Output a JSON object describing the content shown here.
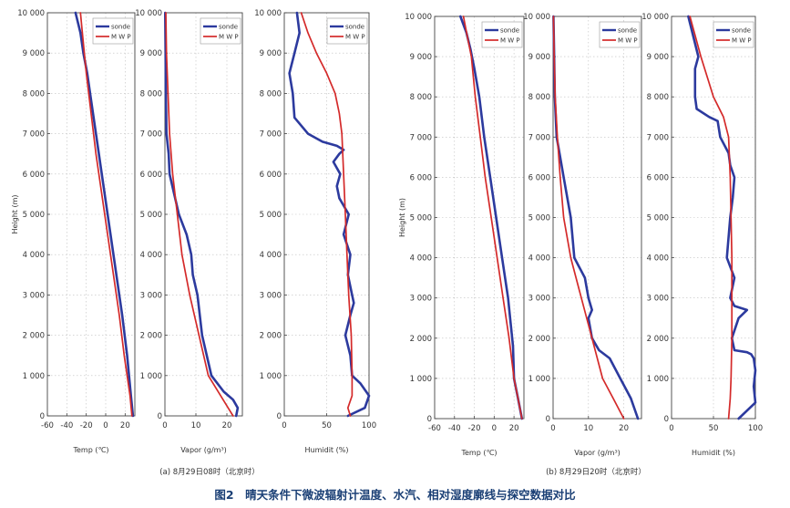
{
  "caption": "图2　晴天条件下微波辐射计温度、水汽、相对湿度廓线与探空数据对比",
  "colors": {
    "sonde": "#2c3a9e",
    "mwp": "#d42a2a",
    "axis": "#444444",
    "text": "#333333"
  },
  "legend": {
    "sonde": "sonde",
    "mwp": "M W P"
  },
  "chart_data": [
    {
      "id": "a-temp",
      "type": "line",
      "xlabel": "Temp (℃)",
      "ylabel": "Height (m)",
      "xlim": [
        -60,
        30
      ],
      "ylim": [
        0,
        10000
      ],
      "xticks": [
        -60,
        -40,
        -20,
        0,
        20
      ],
      "yticks": [
        0,
        1000,
        2000,
        3000,
        4000,
        5000,
        6000,
        7000,
        8000,
        9000,
        10000
      ],
      "ytick_labels": [
        "0",
        "1 000",
        "2 000",
        "3 000",
        "4 000",
        "5 000",
        "6 000",
        "7 000",
        "8 000",
        "9 000",
        "10 000"
      ],
      "grid": true,
      "legend_position": "top-right",
      "series": [
        {
          "name": "sonde",
          "x": [
            28,
            26,
            24,
            22,
            17,
            11,
            5,
            -1,
            -7,
            -13,
            -19,
            -23,
            -26,
            -31
          ],
          "y": [
            0,
            500,
            1000,
            1500,
            2500,
            3500,
            4500,
            5500,
            6500,
            7500,
            8500,
            9000,
            9500,
            10000
          ]
        },
        {
          "name": "MWP",
          "x": [
            27,
            25,
            22,
            19,
            14,
            8,
            2,
            -4,
            -10,
            -15,
            -20,
            -24,
            -26
          ],
          "y": [
            0,
            500,
            1000,
            1500,
            2500,
            3500,
            4500,
            5500,
            6500,
            7500,
            8500,
            9500,
            10000
          ]
        }
      ]
    },
    {
      "id": "a-vapor",
      "type": "line",
      "xlabel": "Vapor (g/m³)",
      "ylabel": "",
      "xlim": [
        0,
        25
      ],
      "ylim": [
        0,
        10000
      ],
      "xticks": [
        0,
        10,
        20
      ],
      "yticks": [
        0,
        1000,
        2000,
        3000,
        4000,
        5000,
        6000,
        7000,
        8000,
        9000,
        10000
      ],
      "ytick_labels": [
        "0",
        "1 000",
        "2 000",
        "3 000",
        "4 000",
        "5 000",
        "6 000",
        "7 000",
        "8 000",
        "9 000",
        "10 000"
      ],
      "grid": true,
      "legend_position": "top-right",
      "series": [
        {
          "name": "sonde",
          "x": [
            23,
            23.5,
            22,
            19,
            15,
            12,
            10.5,
            9,
            8.5,
            7,
            4.5,
            3,
            1.5,
            1.2,
            0.5,
            0.3,
            0.2,
            0.1
          ],
          "y": [
            0,
            200,
            400,
            600,
            1000,
            2000,
            3000,
            3500,
            4000,
            4500,
            5000,
            5500,
            6000,
            6500,
            7000,
            8000,
            9000,
            10000
          ]
        },
        {
          "name": "MWP",
          "x": [
            22,
            18,
            14,
            11,
            8,
            5.5,
            4,
            2.5,
            1.5,
            1,
            0.5,
            0.3
          ],
          "y": [
            0,
            500,
            1000,
            2000,
            3000,
            4000,
            5000,
            6000,
            7000,
            8000,
            9000,
            10000
          ]
        }
      ]
    },
    {
      "id": "a-humid",
      "type": "line",
      "xlabel": "Humidit (%)",
      "ylabel": "",
      "xlim": [
        0,
        100
      ],
      "ylim": [
        0,
        10000
      ],
      "xticks": [
        0,
        50,
        100
      ],
      "yticks": [
        0,
        1000,
        2000,
        3000,
        4000,
        5000,
        6000,
        7000,
        8000,
        9000,
        10000
      ],
      "ytick_labels": [
        "0",
        "1 000",
        "2 000",
        "3 000",
        "4 000",
        "5 000",
        "6 000",
        "7 000",
        "8 000",
        "9 000",
        "10 000"
      ],
      "grid": true,
      "legend_position": "top-right",
      "series": [
        {
          "name": "sonde",
          "x": [
            75,
            95,
            100,
            90,
            80,
            78,
            72,
            78,
            82,
            80,
            75,
            78,
            70,
            76,
            65,
            62,
            66,
            58,
            65,
            70,
            62,
            45,
            28,
            12,
            10,
            6,
            12,
            18,
            15
          ],
          "y": [
            0,
            200,
            500,
            800,
            1000,
            1500,
            2000,
            2500,
            2800,
            3000,
            3500,
            4000,
            4500,
            5000,
            5400,
            5700,
            6000,
            6300,
            6500,
            6600,
            6700,
            6800,
            7000,
            7400,
            8000,
            8500,
            9000,
            9500,
            10000
          ]
        },
        {
          "name": "MWP",
          "x": [
            78,
            75,
            80,
            80,
            79,
            76,
            74,
            72,
            70,
            68,
            65,
            60,
            50,
            38,
            28,
            20
          ],
          "y": [
            0,
            200,
            500,
            1000,
            2000,
            3000,
            4000,
            5000,
            6000,
            7000,
            7500,
            8000,
            8500,
            9000,
            9500,
            10000
          ]
        }
      ]
    },
    {
      "id": "b-temp",
      "type": "line",
      "xlabel": "Temp (℃)",
      "ylabel": "Height (m)",
      "xlim": [
        -60,
        30
      ],
      "ylim": [
        0,
        10000
      ],
      "xticks": [
        -60,
        -40,
        -20,
        0,
        20
      ],
      "yticks": [
        0,
        1000,
        2000,
        3000,
        4000,
        5000,
        6000,
        7000,
        8000,
        9000,
        10000
      ],
      "ytick_labels": [
        "0",
        "1 000",
        "2 000",
        "3 000",
        "4 000",
        "5 000",
        "6 000",
        "7 000",
        "8 000",
        "9 000",
        "10 000"
      ],
      "grid": true,
      "legend_position": "top-right",
      "series": [
        {
          "name": "sonde",
          "x": [
            28,
            24,
            20,
            19,
            14,
            8,
            2,
            -4,
            -10,
            -15,
            -20,
            -24,
            -28,
            -34
          ],
          "y": [
            0,
            500,
            1000,
            1800,
            3000,
            4000,
            5000,
            6000,
            7000,
            8000,
            8700,
            9200,
            9600,
            10000
          ]
        },
        {
          "name": "MWP",
          "x": [
            28,
            24,
            20,
            15,
            9,
            3,
            -3,
            -9,
            -14,
            -19,
            -23,
            -27,
            -31
          ],
          "y": [
            0,
            500,
            1000,
            2000,
            3000,
            4000,
            5000,
            6000,
            7000,
            8000,
            9000,
            9500,
            10000
          ]
        }
      ]
    },
    {
      "id": "b-vapor",
      "type": "line",
      "xlabel": "Vapor (g/m³)",
      "ylabel": "",
      "xlim": [
        0,
        25
      ],
      "ylim": [
        0,
        10000
      ],
      "xticks": [
        0,
        10,
        20
      ],
      "yticks": [
        0,
        1000,
        2000,
        3000,
        4000,
        5000,
        6000,
        7000,
        8000,
        9000,
        10000
      ],
      "ytick_labels": [
        "0",
        "1 000",
        "2 000",
        "3 000",
        "4 000",
        "5 000",
        "6 000",
        "7 000",
        "8 000",
        "9 000",
        "10 000"
      ],
      "grid": true,
      "legend_position": "top-right",
      "series": [
        {
          "name": "sonde",
          "x": [
            24,
            22,
            19,
            16,
            13,
            11,
            10,
            11,
            10,
            9,
            6,
            5,
            4,
            3,
            2,
            1,
            0.5,
            0.3,
            0.1
          ],
          "y": [
            0,
            500,
            1000,
            1500,
            1700,
            2000,
            2500,
            2700,
            3000,
            3500,
            4000,
            5000,
            5500,
            6000,
            6500,
            7000,
            8000,
            9000,
            10000
          ]
        },
        {
          "name": "MWP",
          "x": [
            20,
            17,
            14,
            11,
            8,
            5,
            3,
            2,
            1.2,
            0.6,
            0.3,
            0.1
          ],
          "y": [
            0,
            500,
            1000,
            2000,
            3000,
            4000,
            5000,
            6000,
            7000,
            8000,
            9000,
            10000
          ]
        }
      ]
    },
    {
      "id": "b-humid",
      "type": "line",
      "xlabel": "Humidit (%)",
      "ylabel": "",
      "xlim": [
        0,
        100
      ],
      "ylim": [
        0,
        10000
      ],
      "xticks": [
        0,
        50,
        100
      ],
      "yticks": [
        0,
        1000,
        2000,
        3000,
        4000,
        5000,
        6000,
        7000,
        8000,
        9000,
        10000
      ],
      "ytick_labels": [
        "0",
        "1 000",
        "2 000",
        "3 000",
        "4 000",
        "5 000",
        "6 000",
        "7 000",
        "8 000",
        "9 000",
        "10 000"
      ],
      "grid": true,
      "legend_position": "top-right",
      "series": [
        {
          "name": "sonde",
          "x": [
            80,
            100,
            98,
            100,
            98,
            95,
            90,
            75,
            72,
            80,
            90,
            75,
            70,
            75,
            66,
            70,
            73,
            75,
            70,
            68,
            58,
            55,
            45,
            30,
            28,
            28,
            32,
            20
          ],
          "y": [
            0,
            400,
            800,
            1200,
            1500,
            1600,
            1650,
            1700,
            2000,
            2500,
            2700,
            2800,
            3000,
            3500,
            4000,
            5000,
            5500,
            6000,
            6300,
            6600,
            7000,
            7400,
            7500,
            7700,
            8000,
            8700,
            9000,
            10000
          ]
        },
        {
          "name": "MWP",
          "x": [
            68,
            70,
            71,
            72,
            72,
            72,
            71,
            70,
            68,
            62,
            50,
            35,
            22
          ],
          "y": [
            0,
            500,
            1000,
            2000,
            3000,
            4000,
            5000,
            6000,
            7000,
            7500,
            8000,
            9000,
            10000
          ]
        }
      ]
    }
  ],
  "panels": [
    {
      "label": "(a) 8月29日08时（北京时）"
    },
    {
      "label": "(b) 8月29日20时（北京时）"
    }
  ]
}
